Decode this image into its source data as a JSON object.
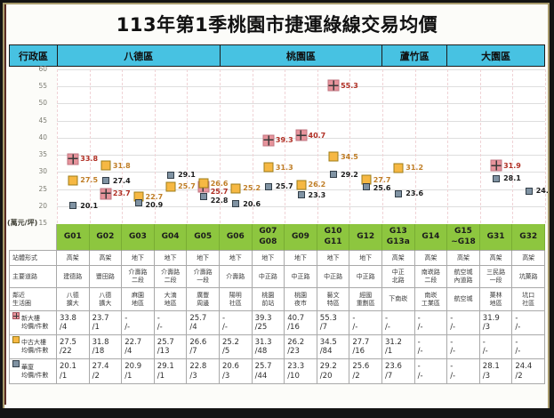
{
  "title": "113年第1季桃園市捷運綠線交易均價",
  "district_header": {
    "label": "行政區",
    "districts": [
      {
        "name": "八德區",
        "span": 5
      },
      {
        "name": "桃園區",
        "span": 5
      },
      {
        "name": "蘆竹區",
        "span": 2
      },
      {
        "name": "大園區",
        "span": 3
      }
    ]
  },
  "chart_data": {
    "type": "scatter",
    "title": "113年第1季桃園市捷運綠線交易均價",
    "unit_label": "(萬元/坪)",
    "ylabel": "萬元/坪",
    "ylim": [
      15,
      60
    ],
    "y_ticks": [
      60,
      55,
      50,
      45,
      40,
      35,
      30,
      25,
      20,
      15
    ],
    "grid": true,
    "stations": [
      "G01",
      "G02",
      "G03",
      "G04",
      "G05",
      "G06",
      "G07\nG08",
      "G09",
      "G10\nG11",
      "G12",
      "G13\nG13a",
      "G14",
      "G15\n~G18",
      "G31",
      "G32"
    ],
    "series": [
      {
        "name": "新大樓",
        "marker": "pink-cross-square",
        "color": "#e6939b",
        "label_color": "#b02e23",
        "values": [
          33.8,
          23.7,
          null,
          null,
          25.7,
          null,
          39.3,
          40.7,
          55.3,
          null,
          null,
          null,
          null,
          31.9,
          null
        ]
      },
      {
        "name": "中古大樓",
        "marker": "orange-square",
        "color": "#f6b843",
        "label_color": "#bf7d26",
        "values": [
          27.5,
          31.8,
          22.7,
          25.7,
          26.6,
          25.2,
          31.3,
          26.2,
          34.5,
          27.7,
          31.2,
          null,
          null,
          null,
          null
        ]
      },
      {
        "name": "華廈",
        "marker": "gray-square",
        "color": "#8093a3",
        "label_color": "#1b1b1b",
        "values": [
          20.1,
          27.4,
          20.9,
          29.1,
          22.8,
          20.6,
          25.7,
          23.3,
          29.2,
          25.6,
          23.6,
          null,
          null,
          28.1,
          24.4
        ]
      }
    ]
  },
  "table": {
    "rows": [
      {
        "label": "站體形式",
        "icon": null,
        "values": [
          "高架",
          "高架",
          "地下",
          "地下",
          "地下",
          "地下",
          "地下",
          "地下",
          "地下",
          "地下",
          "高架",
          "高架",
          "高架",
          "高架",
          "高架"
        ]
      },
      {
        "label": "主要道路",
        "icon": null,
        "values": [
          "建德路",
          "豐田路",
          "介壽路\n二段",
          "介壽路\n二段",
          "介壽路\n一段",
          "介壽路",
          "中正路",
          "中正路",
          "中正路",
          "中正路",
          "中正\n北路",
          "南崁路\n二段",
          "航空城\n內道路",
          "三民路\n一段",
          "坑菓路"
        ]
      },
      {
        "label": "鄰近\n生活圈",
        "icon": null,
        "values": [
          "八德\n擴大",
          "八德\n擴大",
          "麻園\n地區",
          "大湳\n地區",
          "廣豐\n周邊",
          "陽明\n社區",
          "桃園\n前站",
          "桃園\n夜市",
          "藝文\n特區",
          "經國\n重劃區",
          "下南崁",
          "南崁\n工業區",
          "航空城",
          "菓林\n地區",
          "坑口\n社區"
        ]
      },
      {
        "label": "新大樓\n均價/件數",
        "icon": "pink-cross-square",
        "values": [
          "33.8\n/4",
          "23.7\n/1",
          "-\n/-",
          "-\n/-",
          "25.7\n/4",
          "-\n/-",
          "39.3\n/25",
          "40.7\n/16",
          "55.3\n/7",
          "-\n/-",
          "-\n/-",
          "-\n/-",
          "-\n/-",
          "31.9\n/3",
          "-\n/-"
        ]
      },
      {
        "label": "中古大樓\n均價/件數",
        "icon": "orange-square",
        "values": [
          "27.5\n/22",
          "31.8\n/18",
          "22.7\n/4",
          "25.7\n/13",
          "26.6\n/7",
          "25.2\n/5",
          "31.3\n/48",
          "26.2\n/23",
          "34.5\n/84",
          "27.7\n/16",
          "31.2\n/1",
          "-\n/-",
          "-\n/-",
          "-\n/-",
          "-\n/-"
        ]
      },
      {
        "label": "華廈\n均價/件數",
        "icon": "gray-square",
        "values": [
          "20.1\n/1",
          "27.4\n/2",
          "20.9\n/1",
          "29.1\n/1",
          "22.8\n/3",
          "20.6\n/3",
          "25.7\n/44",
          "23.3\n/10",
          "29.2\n/20",
          "25.6\n/2",
          "23.6\n/7",
          "-\n/-",
          "-\n/-",
          "28.1\n/3",
          "24.4\n/2"
        ]
      }
    ]
  }
}
